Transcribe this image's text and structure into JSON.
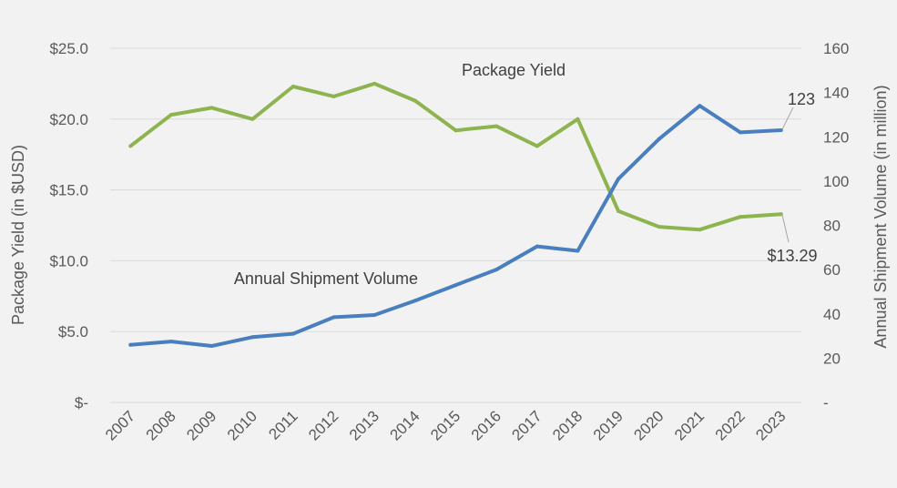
{
  "chart_data": {
    "type": "line",
    "categories": [
      "2007",
      "2008",
      "2009",
      "2010",
      "2011",
      "2012",
      "2013",
      "2014",
      "2015",
      "2016",
      "2017",
      "2018",
      "2019",
      "2020",
      "2021",
      "2022",
      "2023"
    ],
    "series": [
      {
        "name": "Package Yield",
        "axis": "left",
        "color": "#8db44e",
        "values": [
          18.1,
          20.3,
          20.8,
          20.0,
          22.3,
          21.6,
          22.5,
          21.3,
          19.2,
          19.5,
          18.1,
          20.0,
          13.5,
          12.4,
          12.2,
          13.1,
          13.29
        ]
      },
      {
        "name": "Annual Shipment Volume",
        "axis": "right",
        "color": "#4a7fbf",
        "values": [
          26,
          27.5,
          25.5,
          29.5,
          31,
          38.5,
          39.5,
          46,
          53,
          60,
          70.5,
          68.5,
          101,
          119,
          134,
          122,
          123
        ]
      }
    ],
    "left_axis": {
      "label": "Package Yield (in $USD)",
      "ticks": [
        "$-",
        "$5.0",
        "$10.0",
        "$15.0",
        "$20.0",
        "$25.0"
      ],
      "range": [
        0,
        25
      ]
    },
    "right_axis": {
      "label": "Annual Shipment Volume (in million)",
      "ticks": [
        "-",
        "20",
        "40",
        "60",
        "80",
        "100",
        "120",
        "140",
        "160"
      ],
      "range": [
        0,
        160
      ]
    },
    "data_labels": {
      "volume_last": "123",
      "yield_last": "$13.29"
    },
    "grid": true
  }
}
